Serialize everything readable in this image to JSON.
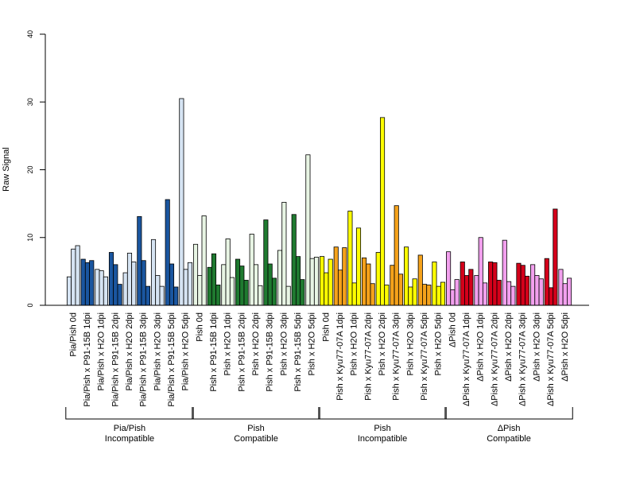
{
  "chart_data": {
    "type": "bar",
    "ylabel": "Raw Signal",
    "ylim": [
      0,
      40
    ],
    "yticks": [
      0,
      10,
      20,
      30,
      40
    ],
    "grid": false,
    "legend": "none",
    "categories": [
      "Pia/Pish 0d",
      "Pia/Pish x P91-15B 1dpi",
      "Pia/Pish x H2O 1dpi",
      "Pia/Pish x P91-15B 2dpi",
      "Pia/Pish x H2O 2dpi",
      "Pia/Pish x P91-15B 3dpi",
      "Pia/Pish x H2O 3dpi",
      "Pia/Pish x P91-15B 5dpi",
      "Pia/Pish x H2O 5dpi",
      "Pish 0d",
      "Pish x P91-15B 1dpi",
      "Pish x H2O 1dpi",
      "Pish x P91-15B 2dpi",
      "Pish x H2O 2dpi",
      "Pish x P91-15B 3dpi",
      "Pish x H2O 3dpi",
      "Pish x P91-15B 5dpi",
      "Pish x H2O 5dpi",
      "Pish 0d",
      "Pish x Kyu77-07A 1dpi",
      "Pish x H2O 1dpi",
      "Pish x Kyu77-07A 2dpi",
      "Pish x H2O 2dpi",
      "Pish x Kyu77-07A 3dpi",
      "Pish x H2O 3dpi",
      "Pish x Kyu77-07A 5dpi",
      "Pish x H2O 5dpi",
      "ΔPish 0d",
      "ΔPish x Kyu77-07A 1dpi",
      "ΔPish x H2O 1dpi",
      "ΔPish x Kyu77-07A 2dpi",
      "ΔPish x H2O 2dpi",
      "ΔPish x Kyu77-07A 3dpi",
      "ΔPish x H2O 3dpi",
      "ΔPish x Kyu77-07A 5dpi",
      "ΔPish x H2O 5dpi"
    ],
    "values": [
      [
        4.2,
        8.3,
        8.8
      ],
      [
        6.8,
        6.3,
        6.6
      ],
      [
        5.3,
        5.1,
        4.2
      ],
      [
        7.8,
        6.0,
        3.1
      ],
      [
        4.8,
        7.7,
        6.4
      ],
      [
        13.1,
        6.6,
        2.8
      ],
      [
        9.7,
        4.4,
        2.8
      ],
      [
        15.6,
        6.1,
        2.7
      ],
      [
        30.5,
        5.3,
        6.3
      ],
      [
        9.0,
        4.4,
        13.2
      ],
      [
        5.6,
        7.6,
        3.0
      ],
      [
        6.0,
        9.8,
        4.1
      ],
      [
        6.8,
        5.8,
        3.7
      ],
      [
        10.5,
        6.0,
        2.9
      ],
      [
        12.6,
        6.1,
        4.0
      ],
      [
        8.1,
        15.2,
        2.8
      ],
      [
        13.4,
        7.2,
        3.8
      ],
      [
        22.2,
        6.9,
        7.1
      ],
      [
        7.2,
        4.8,
        6.8
      ],
      [
        8.6,
        5.2,
        8.5
      ],
      [
        13.9,
        3.3,
        11.4
      ],
      [
        7.0,
        6.1,
        3.2
      ],
      [
        7.8,
        27.7,
        3.0
      ],
      [
        5.9,
        14.7,
        4.6
      ],
      [
        8.6,
        2.7,
        3.9
      ],
      [
        7.4,
        3.1,
        3.0
      ],
      [
        6.4,
        2.8,
        3.4
      ],
      [
        7.9,
        2.3,
        3.8
      ],
      [
        6.4,
        4.4,
        5.3
      ],
      [
        4.4,
        10.0,
        3.3
      ],
      [
        6.4,
        6.3,
        3.7
      ],
      [
        9.6,
        3.5,
        2.8
      ],
      [
        6.2,
        5.9,
        4.3
      ],
      [
        6.0,
        4.4,
        3.9
      ],
      [
        6.9,
        2.6,
        14.2
      ],
      [
        5.3,
        3.2,
        4.0
      ]
    ],
    "colors": {
      "light_blue": "#d6e4f3",
      "dark_blue": "#1a56a0",
      "light_green": "#e8f5e4",
      "dark_green": "#1f7a30",
      "yellow": "#ffff00",
      "orange": "#f5a21b",
      "pink": "#f2a0ee",
      "red": "#d4001a"
    },
    "category_colors": [
      "light_blue",
      "dark_blue",
      "light_blue",
      "dark_blue",
      "light_blue",
      "dark_blue",
      "light_blue",
      "dark_blue",
      "light_blue",
      "light_green",
      "dark_green",
      "light_green",
      "dark_green",
      "light_green",
      "dark_green",
      "light_green",
      "dark_green",
      "light_green",
      "yellow",
      "orange",
      "yellow",
      "orange",
      "yellow",
      "orange",
      "yellow",
      "orange",
      "yellow",
      "pink",
      "red",
      "pink",
      "red",
      "pink",
      "red",
      "pink",
      "red",
      "pink"
    ],
    "groups": [
      {
        "line1": "Pia/Pish",
        "line2": "Incompatible",
        "start": 0,
        "end": 8
      },
      {
        "line1": "Pish",
        "line2": "Compatible",
        "start": 9,
        "end": 17
      },
      {
        "line1": "Pish",
        "line2": "Incompatible",
        "start": 18,
        "end": 26
      },
      {
        "line1": "ΔPish",
        "line2": "Compatible",
        "start": 27,
        "end": 35
      }
    ]
  }
}
